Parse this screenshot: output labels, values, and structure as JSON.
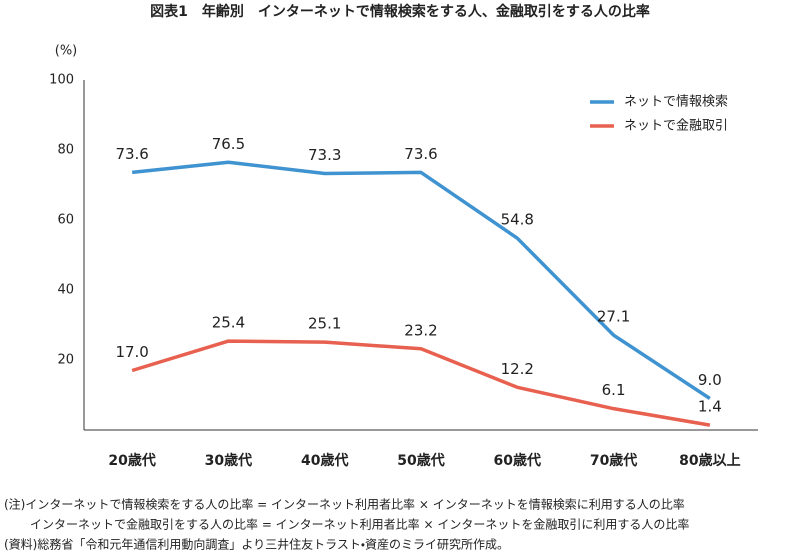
{
  "chart_data": {
    "type": "line",
    "title": "図表1　年齢別　インターネットで情報検索をする人、金融取引をする人の比率",
    "y_unit": "(%)",
    "categories": [
      "20歳代",
      "30歳代",
      "40歳代",
      "50歳代",
      "60歳代",
      "70歳代",
      "80歳以上"
    ],
    "series": [
      {
        "name": "ネットで情報検索",
        "color": "#3f93d0",
        "values": [
          73.6,
          76.5,
          73.3,
          73.6,
          54.8,
          27.1,
          9.0
        ],
        "value_labels": [
          "73.6",
          "76.5",
          "73.3",
          "73.6",
          "54.8",
          "27.1",
          "9.0"
        ]
      },
      {
        "name": "ネットで金融取引",
        "color": "#e8604f",
        "values": [
          17.0,
          25.4,
          25.1,
          23.2,
          12.2,
          6.1,
          1.4
        ],
        "value_labels": [
          "17.0",
          "25.4",
          "25.1",
          "23.2",
          "12.2",
          "6.1",
          "1.4"
        ]
      }
    ],
    "ylim": [
      0,
      100
    ],
    "yticks": [
      20,
      40,
      60,
      80,
      100
    ],
    "grid": false,
    "legend": "upper right",
    "notes": [
      "(注)インターネットで情報検索をする人の比率 = インターネット利用者比率 × インターネットを情報検索に利用する人の比率",
      "インターネットで金融取引をする人の比率 = インターネット利用者比率 × インターネットを金融取引に利用する人の比率",
      "(資料)総務省「令和元年通信利用動向調査」より三井住友トラスト・資産のミライ研究所作成。"
    ]
  }
}
